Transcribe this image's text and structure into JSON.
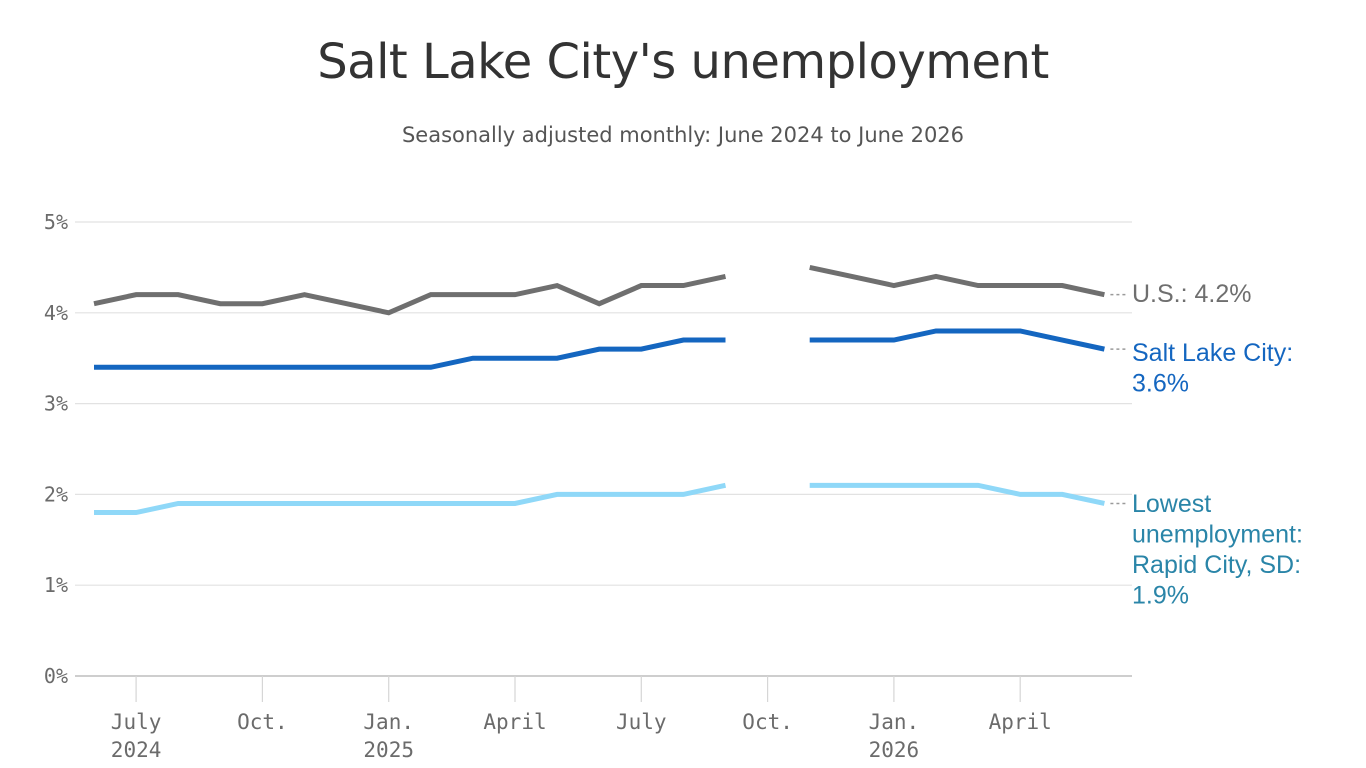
{
  "header": {
    "title": "Salt Lake City's unemployment",
    "subtitle": "Seasonally adjusted monthly: June 2024 to June 2026"
  },
  "chart_data": {
    "type": "line",
    "title": "Salt Lake City's unemployment",
    "subtitle": "Seasonally adjusted monthly: June 2024 to June 2026",
    "xlabel": "",
    "ylabel": "",
    "x": [
      "2024-06",
      "2024-07",
      "2024-08",
      "2024-09",
      "2024-10",
      "2024-11",
      "2024-12",
      "2025-01",
      "2025-02",
      "2025-03",
      "2025-04",
      "2025-05",
      "2025-06",
      "2025-07",
      "2025-08",
      "2025-09",
      "2025-10",
      "2025-11",
      "2025-12",
      "2026-01",
      "2026-02",
      "2026-03",
      "2026-04",
      "2026-05",
      "2026-06"
    ],
    "ylim": [
      0,
      5
    ],
    "y_ticks": [
      "0%",
      "1%",
      "2%",
      "3%",
      "4%",
      "5%"
    ],
    "x_ticks": [
      {
        "date": "2024-07",
        "label": "July",
        "sublabel": "2024"
      },
      {
        "date": "2024-10",
        "label": "Oct.",
        "sublabel": ""
      },
      {
        "date": "2025-01",
        "label": "Jan.",
        "sublabel": "2025"
      },
      {
        "date": "2025-04",
        "label": "April",
        "sublabel": ""
      },
      {
        "date": "2025-07",
        "label": "July",
        "sublabel": ""
      },
      {
        "date": "2025-10",
        "label": "Oct.",
        "sublabel": ""
      },
      {
        "date": "2026-01",
        "label": "Jan.",
        "sublabel": "2026"
      },
      {
        "date": "2026-04",
        "label": "April",
        "sublabel": ""
      }
    ],
    "grid": true,
    "series": [
      {
        "name": "U.S.",
        "end_label": [
          "U.S.: 4.2%"
        ],
        "color": "#6f6f6f",
        "values": [
          4.1,
          4.2,
          4.2,
          4.1,
          4.1,
          4.2,
          4.1,
          4.0,
          4.2,
          4.2,
          4.2,
          4.3,
          4.1,
          4.3,
          4.3,
          4.4,
          null,
          4.5,
          4.4,
          4.3,
          4.4,
          4.3,
          4.3,
          4.3,
          4.2
        ]
      },
      {
        "name": "Salt Lake City",
        "end_label": [
          "Salt Lake City:",
          "3.6%"
        ],
        "color": "#1466c0",
        "values": [
          3.4,
          3.4,
          3.4,
          3.4,
          3.4,
          3.4,
          3.4,
          3.4,
          3.4,
          3.5,
          3.5,
          3.5,
          3.6,
          3.6,
          3.7,
          3.7,
          null,
          3.7,
          3.7,
          3.7,
          3.8,
          3.8,
          3.8,
          3.7,
          3.6
        ]
      },
      {
        "name": "Lowest unemployment: Rapid City, SD",
        "end_label": [
          "Lowest",
          "unemployment:",
          "Rapid City, SD:",
          "1.9%"
        ],
        "color": "#8fd8f8",
        "label_color": "#2a85a8",
        "values": [
          1.8,
          1.8,
          1.9,
          1.9,
          1.9,
          1.9,
          1.9,
          1.9,
          1.9,
          1.9,
          1.9,
          2.0,
          2.0,
          2.0,
          2.0,
          2.1,
          null,
          2.1,
          2.1,
          2.1,
          2.1,
          2.1,
          2.0,
          2.0,
          1.9
        ]
      }
    ]
  }
}
